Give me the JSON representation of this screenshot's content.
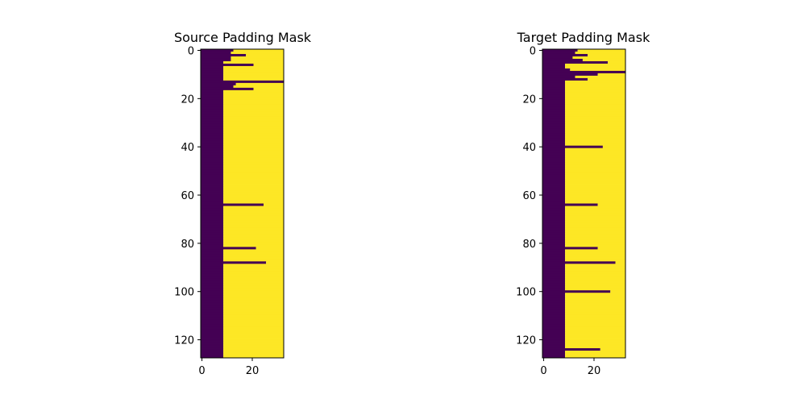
{
  "colors": {
    "pad": "#440154",
    "valid": "#fde725",
    "axis": "#000000"
  },
  "chart_data": [
    {
      "type": "heatmap",
      "title": "Source Padding Mask",
      "xlabel": "",
      "ylabel": "",
      "n_rows": 128,
      "n_cols": 33,
      "xlim": [
        -0.5,
        32.5
      ],
      "ylim": [
        127.5,
        -0.5
      ],
      "xticks": [
        0,
        20
      ],
      "yticks": [
        0,
        20,
        40,
        60,
        80,
        100,
        120
      ],
      "grid": false,
      "legend": "none",
      "values_description": "row_boundaries = number of leading padded (dark) columns per row; remaining columns are valid (yellow)",
      "row_boundaries": [
        13,
        12,
        18,
        12,
        12,
        9,
        21,
        9,
        9,
        9,
        9,
        9,
        9,
        33,
        14,
        13,
        21,
        9,
        9,
        9,
        9,
        9,
        9,
        9,
        9,
        9,
        9,
        9,
        9,
        9,
        9,
        9,
        9,
        9,
        9,
        9,
        9,
        9,
        9,
        9,
        9,
        9,
        9,
        9,
        9,
        9,
        9,
        9,
        9,
        9,
        9,
        9,
        9,
        9,
        9,
        9,
        9,
        9,
        9,
        9,
        9,
        9,
        9,
        9,
        25,
        9,
        9,
        9,
        9,
        9,
        9,
        9,
        9,
        9,
        9,
        9,
        9,
        9,
        9,
        9,
        9,
        9,
        22,
        9,
        9,
        9,
        9,
        9,
        26,
        9,
        9,
        9,
        9,
        9,
        9,
        9,
        9,
        9,
        9,
        9,
        9,
        9,
        9,
        9,
        9,
        9,
        9,
        9,
        9,
        9,
        9,
        9,
        9,
        9,
        9,
        9,
        9,
        9,
        9,
        9,
        9,
        9,
        9,
        9,
        9,
        9,
        9,
        9
      ]
    },
    {
      "type": "heatmap",
      "title": "Target Padding Mask",
      "xlabel": "",
      "ylabel": "",
      "n_rows": 128,
      "n_cols": 33,
      "xlim": [
        -0.5,
        32.5
      ],
      "ylim": [
        127.5,
        -0.5
      ],
      "xticks": [
        0,
        20
      ],
      "yticks": [
        0,
        20,
        40,
        60,
        80,
        100,
        120
      ],
      "grid": false,
      "legend": "none",
      "values_description": "row_boundaries = number of leading padded (dark) columns per row; remaining columns are valid (yellow)",
      "row_boundaries": [
        14,
        13,
        18,
        12,
        16,
        26,
        9,
        9,
        11,
        33,
        22,
        13,
        18,
        9,
        9,
        9,
        9,
        9,
        9,
        9,
        9,
        9,
        9,
        9,
        9,
        9,
        9,
        9,
        9,
        9,
        9,
        9,
        9,
        9,
        9,
        9,
        9,
        9,
        9,
        9,
        24,
        9,
        9,
        9,
        9,
        9,
        9,
        9,
        9,
        9,
        9,
        9,
        9,
        9,
        9,
        9,
        9,
        9,
        9,
        9,
        9,
        9,
        9,
        9,
        22,
        9,
        9,
        9,
        9,
        9,
        9,
        9,
        9,
        9,
        9,
        9,
        9,
        9,
        9,
        9,
        9,
        9,
        22,
        9,
        9,
        9,
        9,
        9,
        29,
        9,
        9,
        9,
        9,
        9,
        9,
        9,
        9,
        9,
        9,
        9,
        27,
        9,
        9,
        9,
        9,
        9,
        9,
        9,
        9,
        9,
        9,
        9,
        9,
        9,
        9,
        9,
        9,
        9,
        9,
        9,
        9,
        9,
        9,
        9,
        23,
        9,
        9,
        9
      ]
    }
  ]
}
